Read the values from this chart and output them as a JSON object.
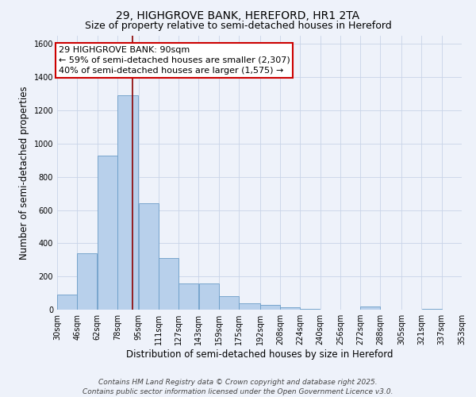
{
  "title_line1": "29, HIGHGROVE BANK, HEREFORD, HR1 2TA",
  "title_line2": "Size of property relative to semi-detached houses in Hereford",
  "xlabel": "Distribution of semi-detached houses by size in Hereford",
  "ylabel": "Number of semi-detached properties",
  "annotation_title": "29 HIGHGROVE BANK: 90sqm",
  "annotation_line2": "← 59% of semi-detached houses are smaller (2,307)",
  "annotation_line3": "40% of semi-detached houses are larger (1,575) →",
  "footer_line1": "Contains HM Land Registry data © Crown copyright and database right 2025.",
  "footer_line2": "Contains public sector information licensed under the Open Government Licence v3.0.",
  "property_size": 90,
  "bin_edges": [
    30,
    46,
    62,
    78,
    95,
    111,
    127,
    143,
    159,
    175,
    192,
    208,
    224,
    240,
    256,
    272,
    288,
    305,
    321,
    337,
    353
  ],
  "bin_labels": [
    "30sqm",
    "46sqm",
    "62sqm",
    "78sqm",
    "95sqm",
    "111sqm",
    "127sqm",
    "143sqm",
    "159sqm",
    "175sqm",
    "192sqm",
    "208sqm",
    "224sqm",
    "240sqm",
    "256sqm",
    "272sqm",
    "288sqm",
    "305sqm",
    "321sqm",
    "337sqm",
    "353sqm"
  ],
  "counts": [
    90,
    340,
    930,
    1290,
    640,
    310,
    160,
    160,
    80,
    40,
    30,
    15,
    5,
    0,
    0,
    20,
    0,
    0,
    5,
    0,
    5
  ],
  "bar_color": "#b8d0eb",
  "bar_edge_color": "#6a9dc8",
  "vline_color": "#8b0000",
  "vline_x": 90,
  "ylim": [
    0,
    1650
  ],
  "yticks": [
    0,
    200,
    400,
    600,
    800,
    1000,
    1200,
    1400,
    1600
  ],
  "bg_color": "#eef2fa",
  "grid_color": "#c8d4e8",
  "annotation_box_color": "#ffffff",
  "annotation_box_edge": "#cc0000",
  "title_fontsize": 10,
  "subtitle_fontsize": 9,
  "axis_label_fontsize": 8.5,
  "tick_fontsize": 7,
  "annotation_fontsize": 8,
  "footer_fontsize": 6.5
}
